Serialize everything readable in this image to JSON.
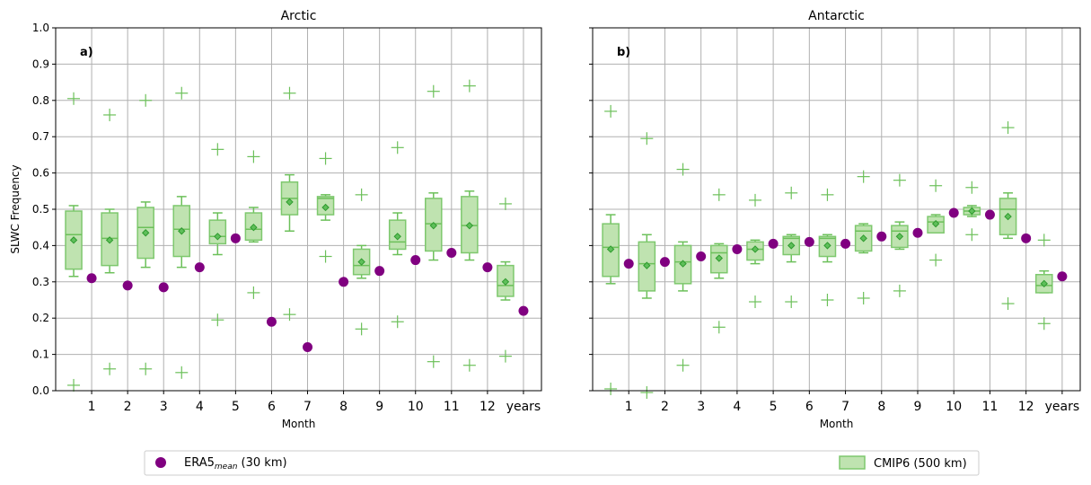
{
  "chart_data": [
    {
      "type": "box",
      "title": "Arctic",
      "panel_label": "a)",
      "xlabel": "Month",
      "ylabel": "SLWC Frequency",
      "ylim": [
        0,
        1.0
      ],
      "yticks": [
        "0.0",
        "0.1",
        "0.2",
        "0.3",
        "0.4",
        "0.5",
        "0.6",
        "0.7",
        "0.8",
        "0.9",
        "1.0"
      ],
      "categories": [
        "1",
        "2",
        "3",
        "4",
        "5",
        "6",
        "7",
        "8",
        "9",
        "10",
        "11",
        "12",
        "years"
      ],
      "grid": true,
      "era5_mean": [
        0.31,
        0.29,
        0.285,
        0.34,
        0.42,
        0.19,
        0.12,
        0.3,
        0.33,
        0.36,
        0.38,
        0.34,
        0.22
      ],
      "cmip6_boxes": [
        {
          "whisker_low": 0.315,
          "q1": 0.335,
          "median": 0.43,
          "q3": 0.495,
          "whisker_high": 0.51,
          "mean": 0.415,
          "outliers": [
            0.805,
            0.015
          ]
        },
        {
          "whisker_low": 0.325,
          "q1": 0.345,
          "median": 0.42,
          "q3": 0.49,
          "whisker_high": 0.5,
          "mean": 0.415,
          "outliers": [
            0.76,
            0.06
          ]
        },
        {
          "whisker_low": 0.34,
          "q1": 0.365,
          "median": 0.45,
          "q3": 0.505,
          "whisker_high": 0.52,
          "mean": 0.435,
          "outliers": [
            0.8,
            0.06
          ]
        },
        {
          "whisker_low": 0.34,
          "q1": 0.37,
          "median": 0.445,
          "q3": 0.51,
          "whisker_high": 0.535,
          "mean": 0.44,
          "outliers": [
            0.82,
            0.05
          ]
        },
        {
          "whisker_low": 0.375,
          "q1": 0.405,
          "median": 0.425,
          "q3": 0.47,
          "whisker_high": 0.49,
          "mean": 0.425,
          "outliers": [
            0.665,
            0.195
          ]
        },
        {
          "whisker_low": 0.41,
          "q1": 0.415,
          "median": 0.445,
          "q3": 0.49,
          "whisker_high": 0.505,
          "mean": 0.45,
          "outliers": [
            0.645,
            0.27
          ]
        },
        {
          "whisker_low": 0.44,
          "q1": 0.485,
          "median": 0.53,
          "q3": 0.575,
          "whisker_high": 0.595,
          "mean": 0.52,
          "outliers": [
            0.82,
            0.21
          ]
        },
        {
          "whisker_low": 0.47,
          "q1": 0.485,
          "median": 0.53,
          "q3": 0.535,
          "whisker_high": 0.54,
          "mean": 0.505,
          "outliers": [
            0.64,
            0.37
          ]
        },
        {
          "whisker_low": 0.31,
          "q1": 0.32,
          "median": 0.345,
          "q3": 0.39,
          "whisker_high": 0.4,
          "mean": 0.355,
          "outliers": [
            0.54,
            0.17
          ]
        },
        {
          "whisker_low": 0.375,
          "q1": 0.39,
          "median": 0.41,
          "q3": 0.47,
          "whisker_high": 0.49,
          "mean": 0.425,
          "outliers": [
            0.67,
            0.19
          ]
        },
        {
          "whisker_low": 0.36,
          "q1": 0.385,
          "median": 0.46,
          "q3": 0.53,
          "whisker_high": 0.545,
          "mean": 0.455,
          "outliers": [
            0.825,
            0.08
          ]
        },
        {
          "whisker_low": 0.36,
          "q1": 0.38,
          "median": 0.455,
          "q3": 0.535,
          "whisker_high": 0.55,
          "mean": 0.455,
          "outliers": [
            0.84,
            0.07
          ]
        },
        {
          "whisker_low": 0.25,
          "q1": 0.26,
          "median": 0.29,
          "q3": 0.345,
          "whisker_high": 0.355,
          "mean": 0.3,
          "outliers": [
            0.515,
            0.095
          ]
        }
      ]
    },
    {
      "type": "box",
      "title": "Antarctic",
      "panel_label": "b)",
      "xlabel": "Month",
      "ylabel": "",
      "ylim": [
        0,
        1.0
      ],
      "categories": [
        "1",
        "2",
        "3",
        "4",
        "5",
        "6",
        "7",
        "8",
        "9",
        "10",
        "11",
        "12",
        "years"
      ],
      "grid": true,
      "era5_mean": [
        0.35,
        0.355,
        0.37,
        0.39,
        0.405,
        0.41,
        0.405,
        0.425,
        0.435,
        0.49,
        0.485,
        0.42,
        0.315
      ],
      "cmip6_boxes": [
        {
          "whisker_low": 0.295,
          "q1": 0.315,
          "median": 0.395,
          "q3": 0.46,
          "whisker_high": 0.485,
          "mean": 0.39,
          "outliers": [
            0.77,
            0.005
          ]
        },
        {
          "whisker_low": 0.255,
          "q1": 0.275,
          "median": 0.35,
          "q3": 0.41,
          "whisker_high": 0.43,
          "mean": 0.345,
          "outliers": [
            0.695,
            -0.005
          ]
        },
        {
          "whisker_low": 0.275,
          "q1": 0.295,
          "median": 0.355,
          "q3": 0.4,
          "whisker_high": 0.41,
          "mean": 0.35,
          "outliers": [
            0.61,
            0.07
          ]
        },
        {
          "whisker_low": 0.31,
          "q1": 0.325,
          "median": 0.38,
          "q3": 0.4,
          "whisker_high": 0.405,
          "mean": 0.365,
          "outliers": [
            0.54,
            0.175
          ]
        },
        {
          "whisker_low": 0.35,
          "q1": 0.36,
          "median": 0.39,
          "q3": 0.41,
          "whisker_high": 0.415,
          "mean": 0.39,
          "outliers": [
            0.525,
            0.245
          ]
        },
        {
          "whisker_low": 0.355,
          "q1": 0.375,
          "median": 0.42,
          "q3": 0.425,
          "whisker_high": 0.43,
          "mean": 0.4,
          "outliers": [
            0.545,
            0.245
          ]
        },
        {
          "whisker_low": 0.355,
          "q1": 0.37,
          "median": 0.42,
          "q3": 0.425,
          "whisker_high": 0.43,
          "mean": 0.4,
          "outliers": [
            0.54,
            0.25
          ]
        },
        {
          "whisker_low": 0.38,
          "q1": 0.385,
          "median": 0.44,
          "q3": 0.455,
          "whisker_high": 0.46,
          "mean": 0.42,
          "outliers": [
            0.59,
            0.255
          ]
        },
        {
          "whisker_low": 0.39,
          "q1": 0.395,
          "median": 0.44,
          "q3": 0.455,
          "whisker_high": 0.465,
          "mean": 0.425,
          "outliers": [
            0.58,
            0.275
          ]
        },
        {
          "whisker_low": 0.435,
          "q1": 0.435,
          "median": 0.465,
          "q3": 0.48,
          "whisker_high": 0.485,
          "mean": 0.46,
          "outliers": [
            0.565,
            0.36
          ]
        },
        {
          "whisker_low": 0.48,
          "q1": 0.485,
          "median": 0.495,
          "q3": 0.505,
          "whisker_high": 0.51,
          "mean": 0.495,
          "outliers": [
            0.56,
            0.43
          ]
        },
        {
          "whisker_low": 0.42,
          "q1": 0.43,
          "median": 0.5,
          "q3": 0.53,
          "whisker_high": 0.545,
          "mean": 0.48,
          "outliers": [
            0.725,
            0.24
          ]
        },
        {
          "whisker_low": 0.27,
          "q1": 0.27,
          "median": 0.29,
          "q3": 0.32,
          "whisker_high": 0.33,
          "mean": 0.295,
          "outliers": [
            0.415,
            0.185
          ]
        }
      ]
    }
  ],
  "legend": {
    "era5_label_prefix": "ERA5",
    "era5_label_subscript": "mean",
    "era5_label_suffix": " (30 km)",
    "cmip6_label": "CMIP6 (500 km)"
  },
  "colors": {
    "era5": "#800080",
    "box_fill": "#bfe3b0",
    "box_edge": "#7ec86e",
    "whisker": "#6cc05a",
    "mean_marker_fill": "#5fbf5a",
    "mean_marker_edge": "#2e9a2e",
    "grid": "#b0b0b0"
  }
}
